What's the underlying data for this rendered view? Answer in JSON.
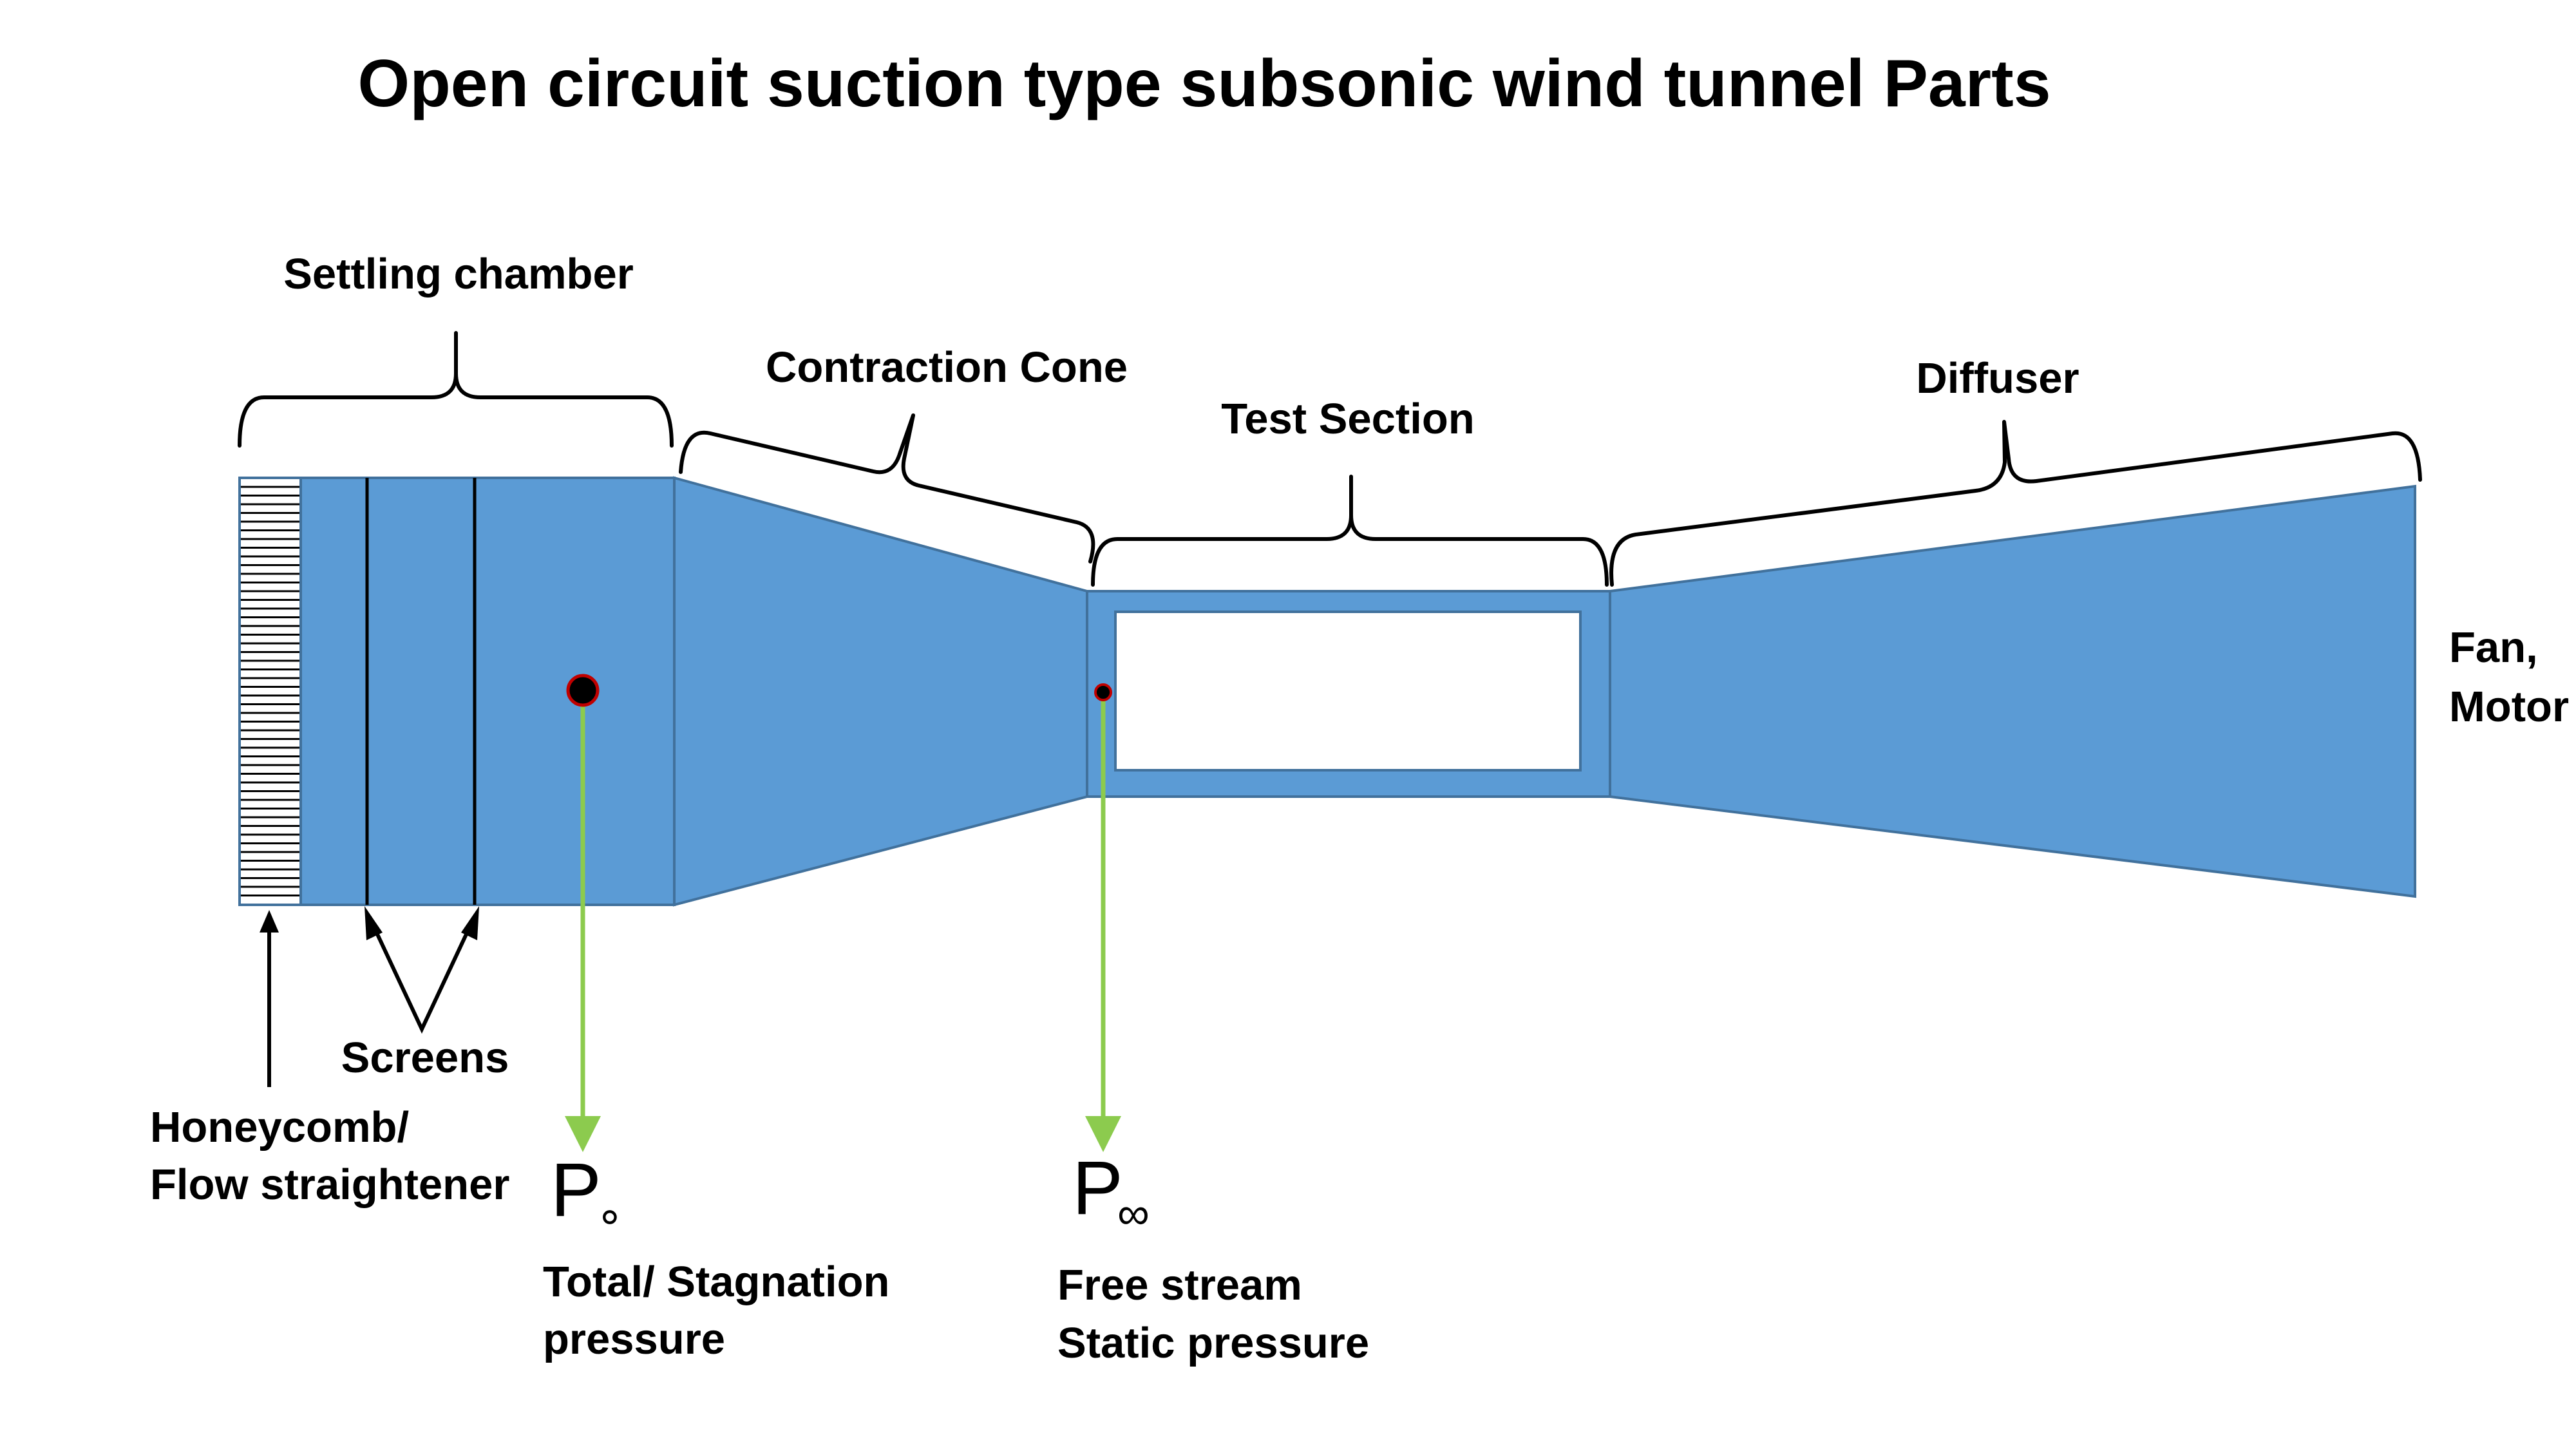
{
  "title": "Open circuit suction type subsonic wind tunnel Parts",
  "labels": {
    "settling_chamber": "Settling chamber",
    "contraction_cone": "Contraction Cone",
    "test_section": "Test Section",
    "diffuser": "Diffuser",
    "fan_motor_line1": "Fan,",
    "fan_motor_line2": "Motor",
    "screens": "Screens",
    "honeycomb_line1": "Honeycomb/",
    "honeycomb_line2": "Flow straightener",
    "total_pressure_line1": "Total/ Stagnation",
    "total_pressure_line2": "pressure",
    "static_pressure_line1": "Free stream",
    "static_pressure_line2": "Static pressure"
  },
  "symbols": {
    "p_total": "P",
    "p_total_sub": "∘",
    "p_inf": "P",
    "p_inf_sub": "∞"
  },
  "colors": {
    "tunnel_fill": "#5b9bd5",
    "tunnel_stroke": "#41719c",
    "probe_line": "#8ccb4e",
    "probe_dot": "#000000",
    "probe_ring": "#c00000"
  }
}
